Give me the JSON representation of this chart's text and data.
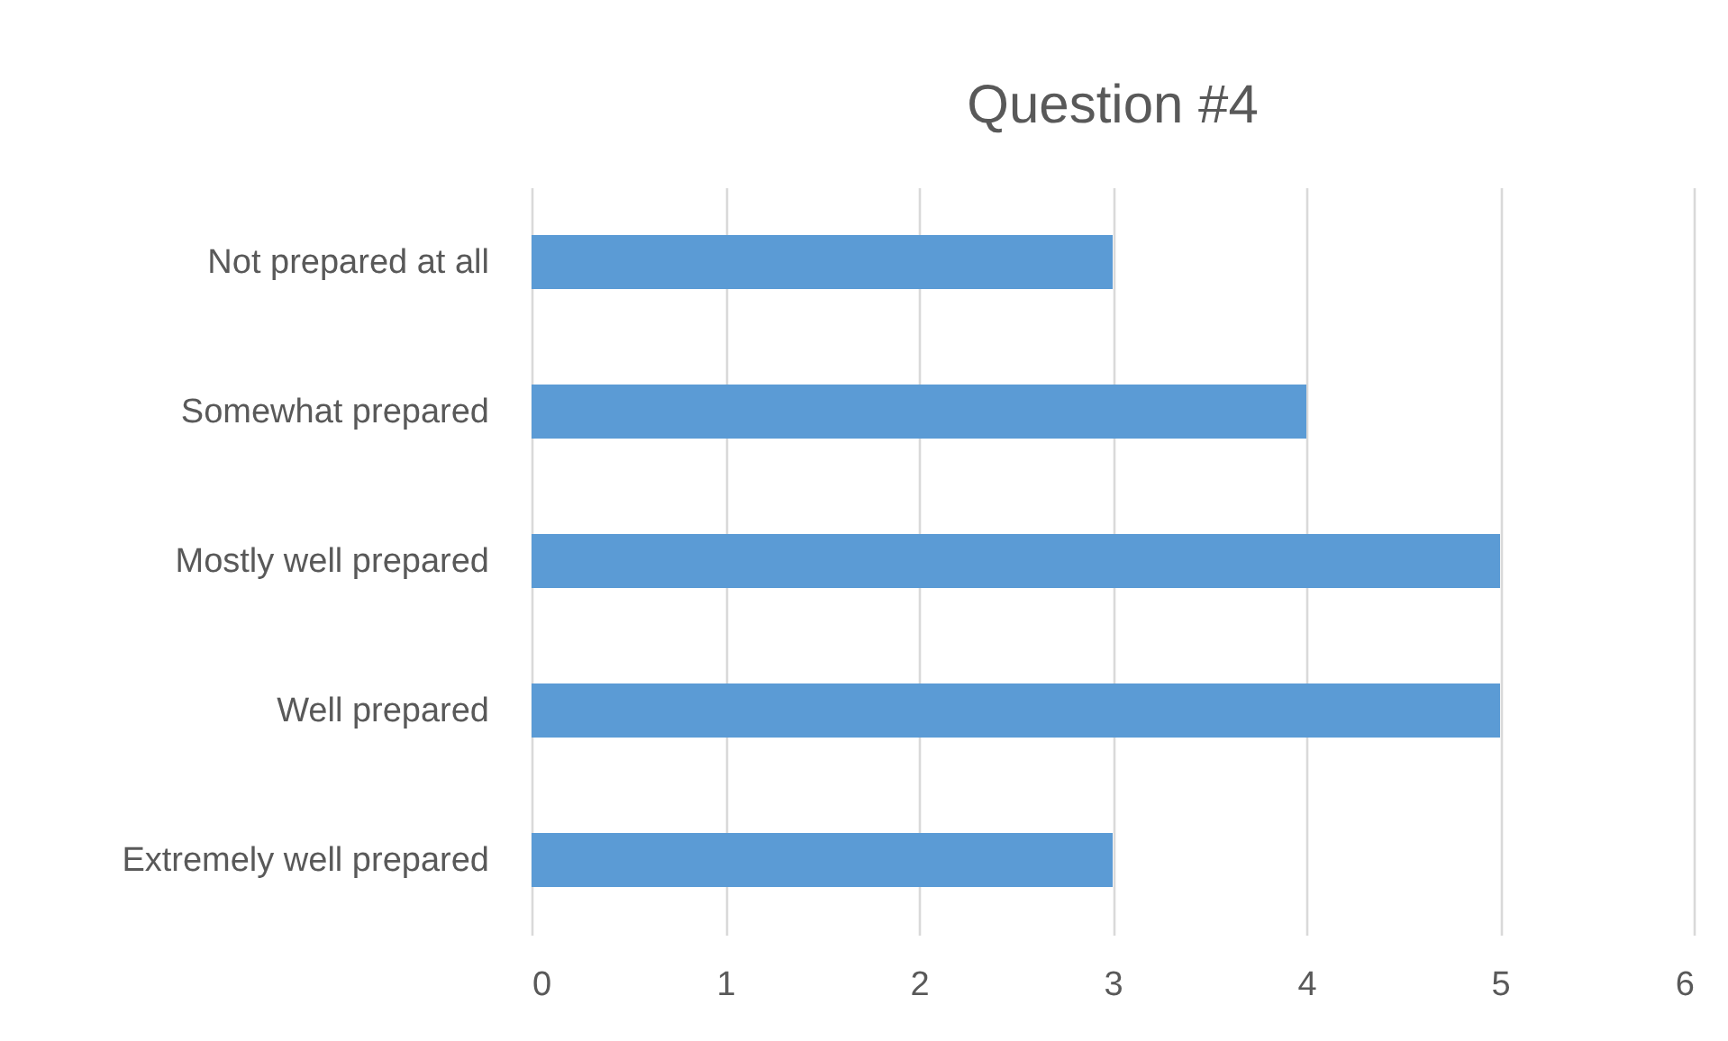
{
  "chart_data": {
    "type": "bar",
    "title": "Question #4",
    "orientation": "horizontal",
    "categories": [
      "Not prepared at all",
      "Somewhat prepared",
      "Mostly well prepared",
      "Well prepared",
      "Extremely well prepared"
    ],
    "values": [
      3,
      4,
      5,
      5,
      3
    ],
    "color": "#5b9bd5",
    "xlim": [
      0,
      6
    ],
    "xticks": [
      0,
      1,
      2,
      3,
      4,
      5,
      6
    ],
    "grid": "x"
  }
}
